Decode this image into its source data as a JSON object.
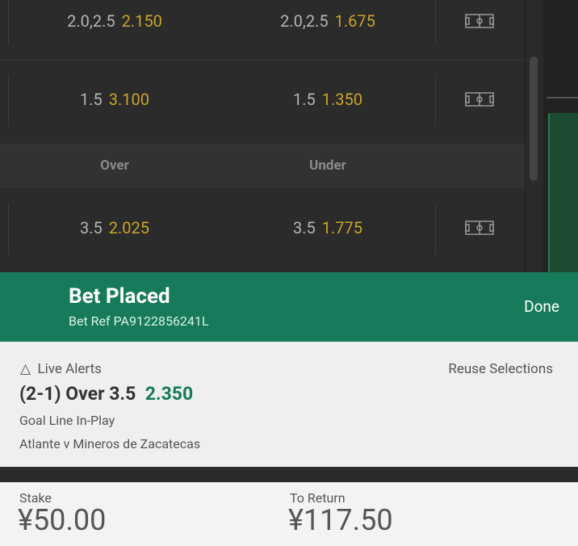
{
  "markets": {
    "rows": [
      {
        "left": {
          "line": "2.0,2.5",
          "odds": "2.150"
        },
        "right": {
          "line": "2.0,2.5",
          "odds": "1.675"
        }
      },
      {
        "left": {
          "line": "1.5",
          "odds": "3.100"
        },
        "right": {
          "line": "1.5",
          "odds": "1.350"
        }
      },
      {
        "left": {
          "line": "3.5",
          "odds": "2.025"
        },
        "right": {
          "line": "3.5",
          "odds": "1.775"
        }
      }
    ],
    "header": {
      "left": "Over",
      "right": "Under"
    }
  },
  "banner": {
    "title": "Bet Placed",
    "ref": "Bet Ref PA9122856241L",
    "done": "Done"
  },
  "panel": {
    "live_alerts": "Live Alerts",
    "reuse": "Reuse Selections"
  },
  "selection": {
    "name": "(2-1) Over 3.5",
    "odds": "2.350",
    "market": "Goal Line In-Play",
    "event": "Atlante v Mineros de Zacatecas"
  },
  "footer": {
    "stake_label": "Stake",
    "stake": "¥50.00",
    "return_label": "To Return",
    "return": "¥117.50"
  }
}
